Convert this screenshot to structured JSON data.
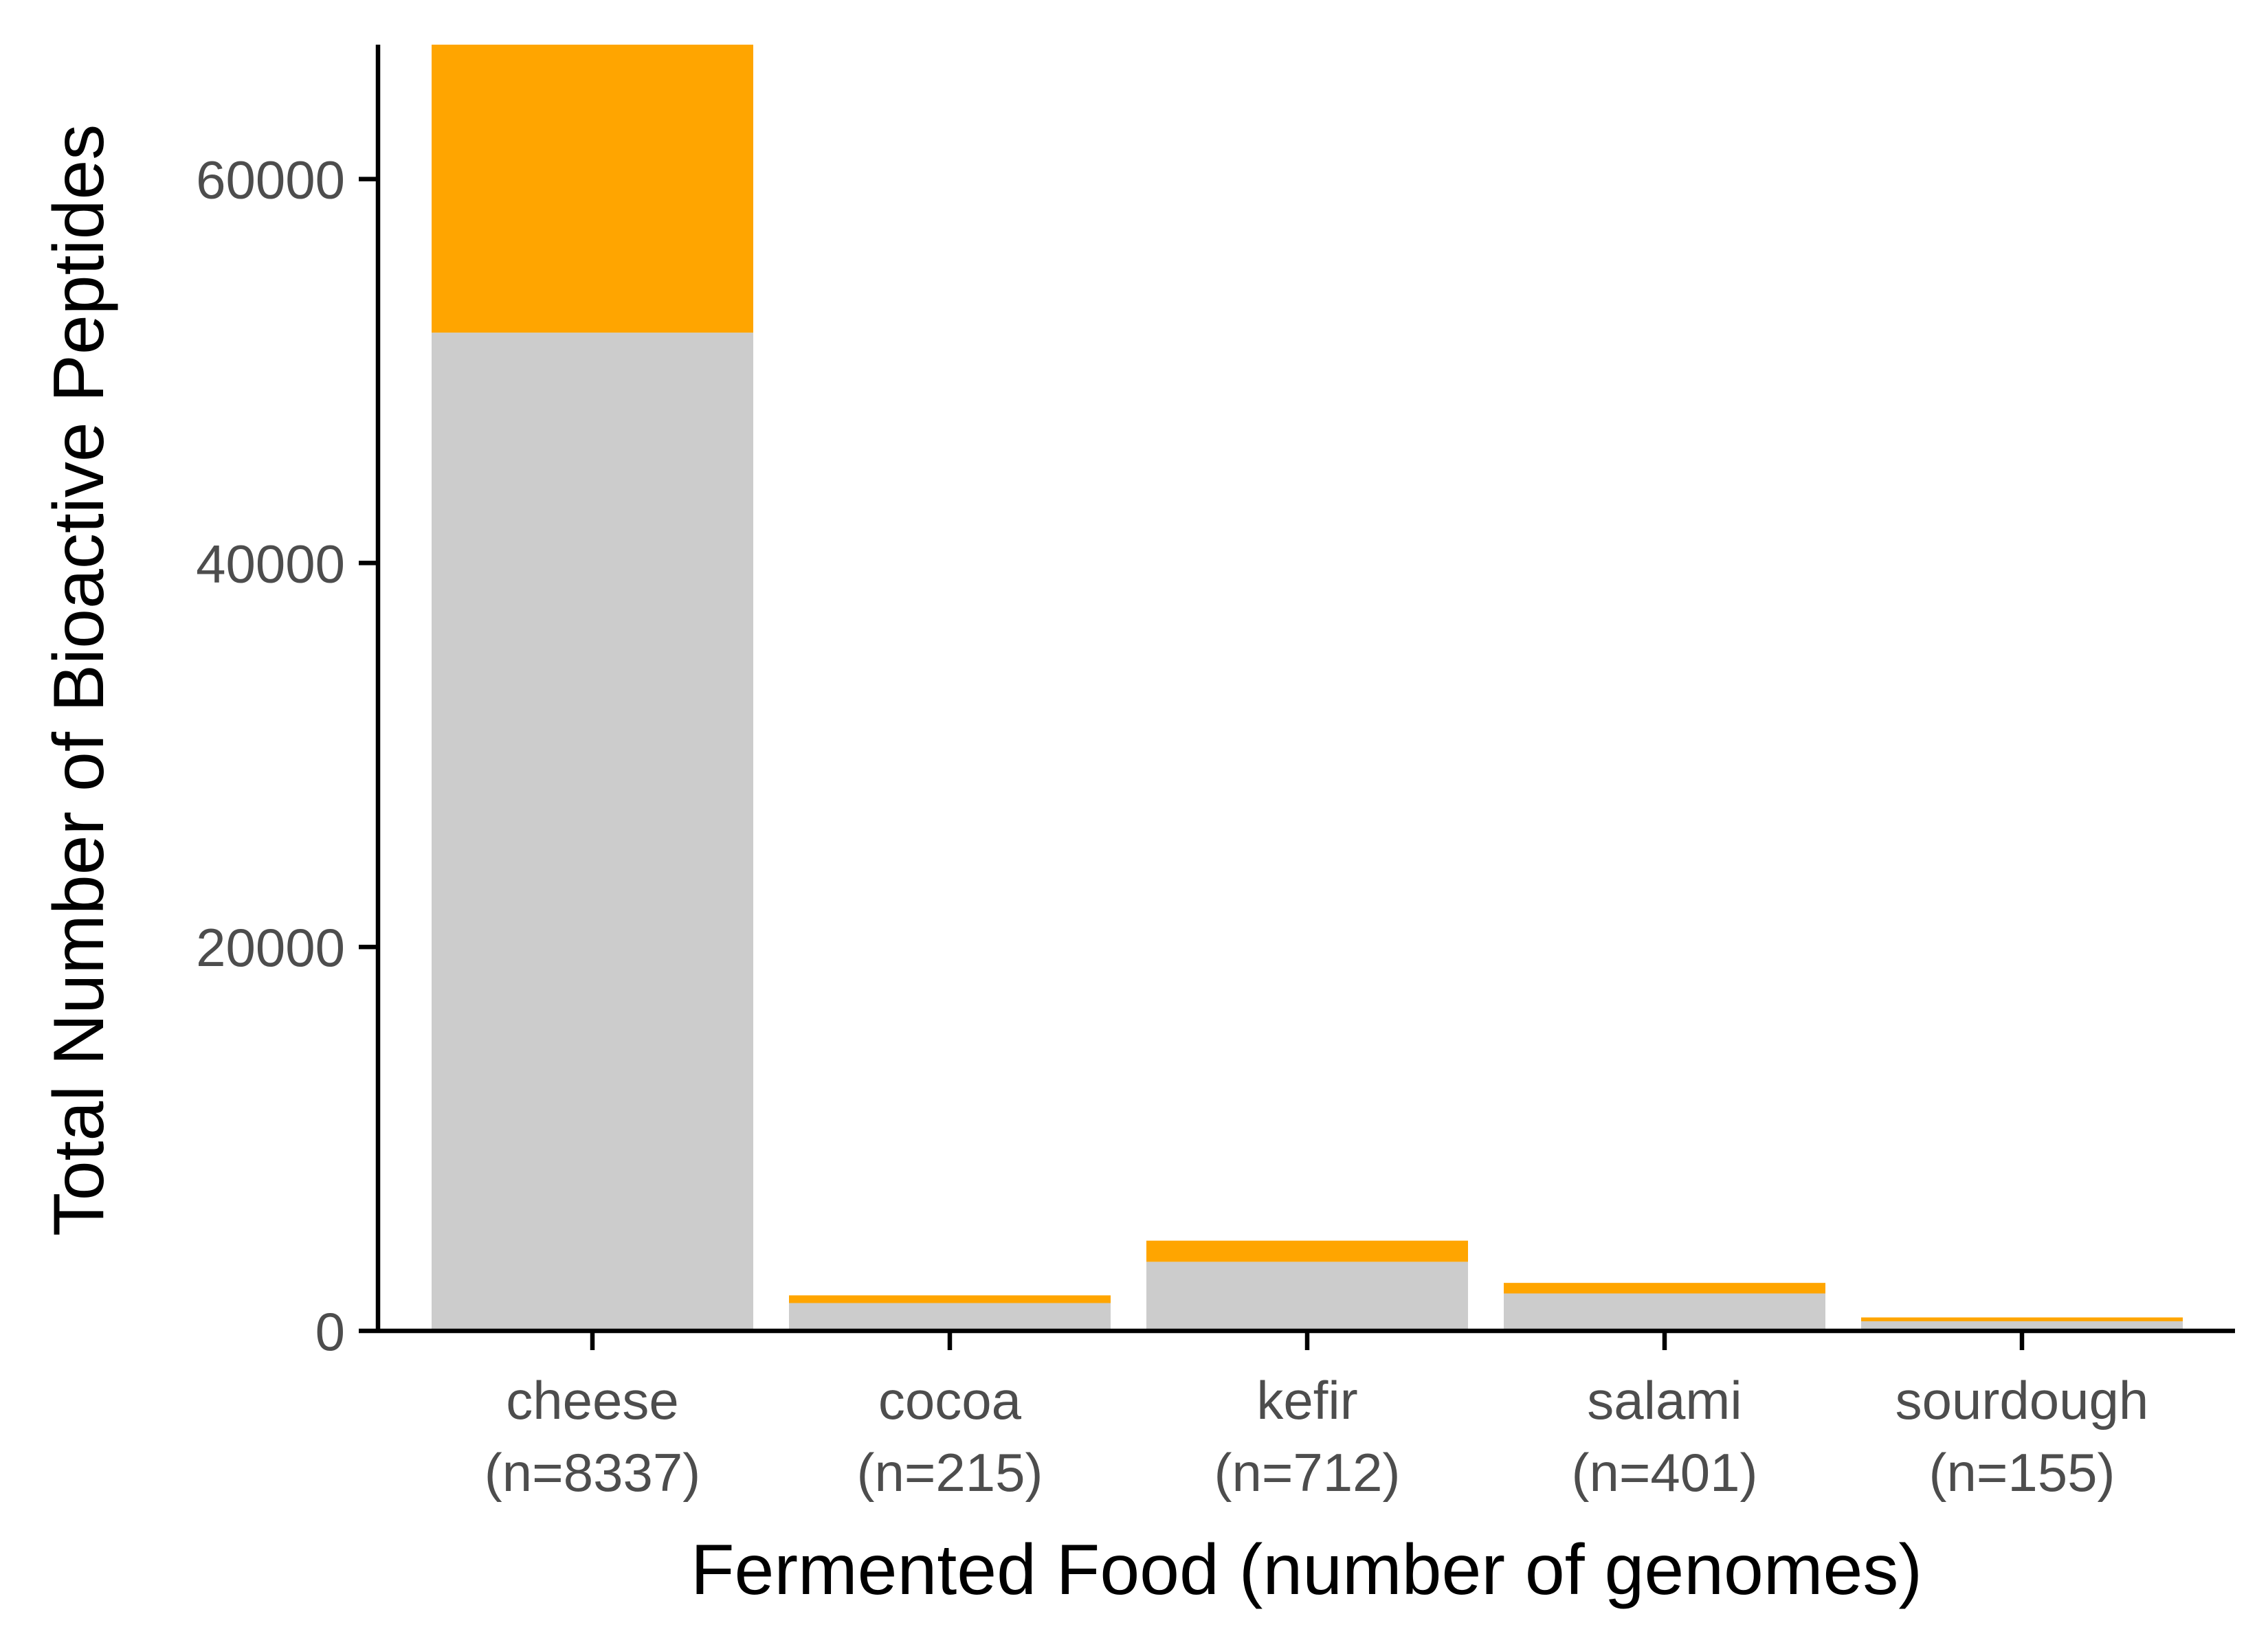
{
  "chart_data": {
    "type": "bar",
    "stacked": true,
    "title": "",
    "xlabel": "Fermented Food (number of genomes)",
    "ylabel": "Total Number of Bioactive Peptides",
    "ylim": [
      0,
      67000
    ],
    "yticks": [
      0,
      20000,
      40000,
      60000
    ],
    "ytick_labels": [
      "0",
      "20000",
      "40000",
      "60000"
    ],
    "grid": false,
    "legend": "none",
    "categories": [
      "cheese",
      "cocoa",
      "kefir",
      "salami",
      "sourdough"
    ],
    "category_counts": [
      "(n=8337)",
      "(n=215)",
      "(n=712)",
      "(n=401)",
      "(n=155)"
    ],
    "series": [
      {
        "color": "#cccccc",
        "values": [
          52000,
          1450,
          3600,
          1950,
          500
        ]
      },
      {
        "color": "#ffa500",
        "values": [
          15000,
          400,
          1100,
          550,
          200
        ]
      }
    ]
  }
}
